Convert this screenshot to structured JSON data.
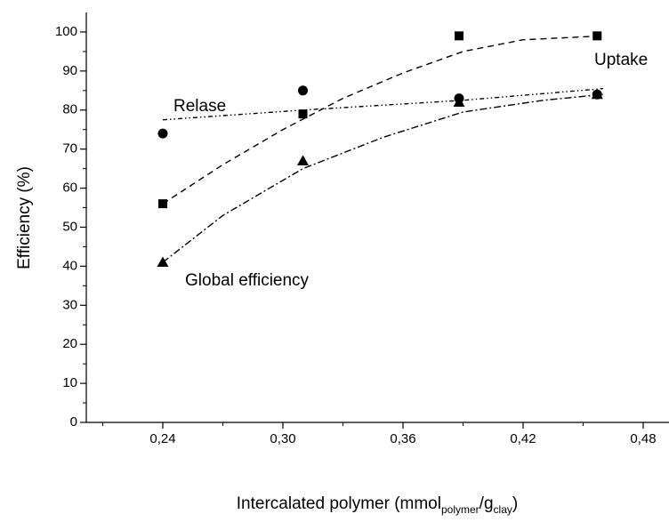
{
  "chart_data": {
    "type": "scatter",
    "x_label": [
      "Intercalated polymer (mmol",
      "polymer",
      "/g",
      "clay",
      ")"
    ],
    "y_label": "Efficiency (%)",
    "xlim": [
      0.2,
      0.49
    ],
    "ylim": [
      0,
      105
    ],
    "xticks": [
      {
        "value": 0.24,
        "label": "0,24"
      },
      {
        "value": 0.3,
        "label": "0,30"
      },
      {
        "value": 0.36,
        "label": "0,36"
      },
      {
        "value": 0.42,
        "label": "0,42"
      },
      {
        "value": 0.48,
        "label": "0,48"
      }
    ],
    "x_minor_ticks": [
      0.21,
      0.27,
      0.33,
      0.39,
      0.45
    ],
    "yticks": [
      0,
      10,
      20,
      30,
      40,
      50,
      60,
      70,
      80,
      90,
      100
    ],
    "y_minor_ticks": [
      5,
      15,
      25,
      35,
      45,
      55,
      65,
      75,
      85,
      95
    ],
    "series": [
      {
        "name": "Uptake",
        "color": "#000000",
        "marker": "square",
        "line_style": "dash",
        "x": [
          0.24,
          0.31,
          0.388,
          0.457
        ],
        "values": [
          56,
          79,
          99,
          99
        ],
        "fit": {
          "x": [
            0.24,
            0.27,
            0.3,
            0.33,
            0.36,
            0.39,
            0.42,
            0.46
          ],
          "y": [
            56,
            66,
            75,
            83,
            89.5,
            95,
            98,
            99
          ]
        }
      },
      {
        "name": "Relase",
        "color": "#000000",
        "marker": "circle",
        "line_style": "dash-dot-dot",
        "x": [
          0.24,
          0.31,
          0.388,
          0.457
        ],
        "values": [
          74,
          85,
          83,
          84
        ],
        "fit": {
          "x": [
            0.24,
            0.31,
            0.39,
            0.46
          ],
          "y": [
            77.5,
            80,
            82.5,
            85.5
          ]
        }
      },
      {
        "name": "Global efficiency",
        "color": "#000000",
        "marker": "triangle",
        "line_style": "dash-dot",
        "x": [
          0.24,
          0.31,
          0.388,
          0.457
        ],
        "values": [
          41,
          67,
          82,
          84
        ],
        "fit": {
          "x": [
            0.24,
            0.27,
            0.31,
            0.35,
            0.39,
            0.43,
            0.46
          ],
          "y": [
            41,
            53,
            65,
            73,
            79.5,
            82.5,
            84
          ]
        }
      }
    ]
  }
}
